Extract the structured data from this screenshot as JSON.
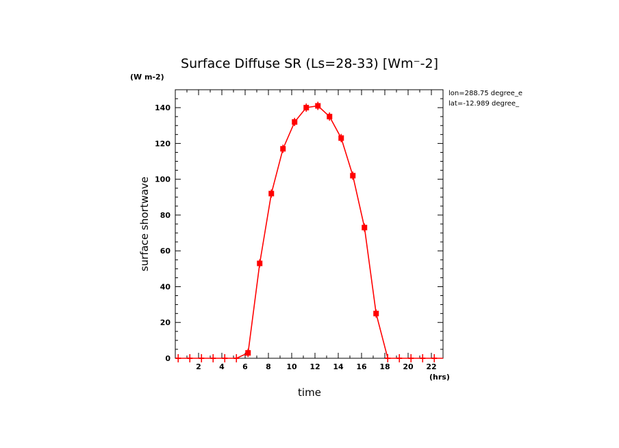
{
  "chart_data": {
    "type": "line",
    "title": "Surface Diffuse SR (Ls=28-33) [Wm⁻-2]",
    "units_label": "(W m-2)",
    "xlabel": "time",
    "x_units": "(hrs)",
    "ylabel": "surface shortwave",
    "annotations": [
      "lon=288.75 degree_e",
      "lat=-12.989 degree_"
    ],
    "xlim": [
      0,
      23
    ],
    "ylim": [
      0,
      150
    ],
    "x_ticks": [
      2,
      4,
      6,
      8,
      10,
      12,
      14,
      16,
      18,
      20,
      22
    ],
    "y_ticks": [
      0,
      20,
      40,
      60,
      80,
      100,
      120,
      140
    ],
    "series": [
      {
        "color": "#ff0000",
        "x": [
          0.25,
          1.25,
          2.25,
          3.25,
          4.25,
          5.25,
          6.25,
          7.25,
          8.25,
          9.25,
          10.25,
          11.25,
          12.25,
          13.25,
          14.25,
          15.25,
          16.25,
          17.25,
          18.25,
          19.25,
          20.25,
          21.25,
          22.25
        ],
        "y": [
          0,
          0,
          0,
          0,
          0,
          0,
          3,
          53,
          92,
          117,
          132,
          140,
          141,
          135,
          123,
          102,
          73,
          25,
          0,
          0,
          0,
          0,
          0
        ]
      }
    ]
  }
}
